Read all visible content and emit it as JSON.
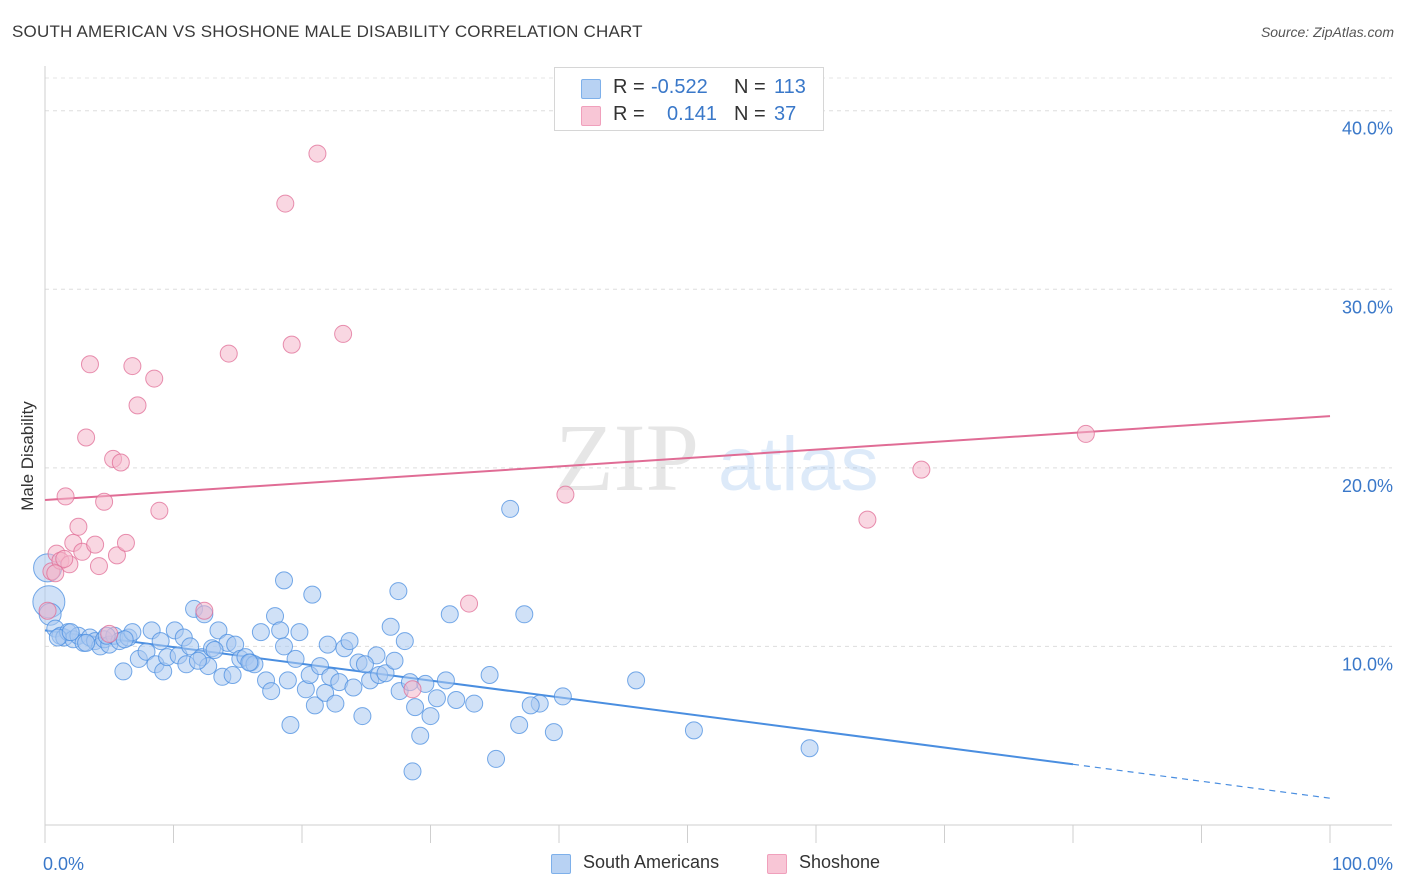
{
  "title": "SOUTH AMERICAN VS SHOSHONE MALE DISABILITY CORRELATION CHART",
  "source": "Source: ZipAtlas.com",
  "watermark": {
    "zip": "ZIP",
    "atlas": "atlas"
  },
  "legend": {
    "rows": [
      {
        "r_label": "R =",
        "r_value": "-0.522",
        "n_label": "N =",
        "n_value": "113",
        "color": "#7eb0ea"
      },
      {
        "r_label": "R =",
        "r_value": "0.141",
        "n_label": "N =",
        "n_value": "37",
        "color": "#f0a0bc"
      }
    ]
  },
  "bottom_legend": [
    {
      "label": "South Americans",
      "color": "#7eb0ea"
    },
    {
      "label": "Shoshone",
      "color": "#f0a0bc"
    }
  ],
  "chart_data": {
    "type": "scatter",
    "xlabel": "",
    "ylabel": "Male Disability",
    "xlim": [
      0,
      100
    ],
    "ylim": [
      0,
      42
    ],
    "x_tick_labels": [
      "0.0%",
      "100.0%"
    ],
    "y_ticks": [
      10,
      20,
      30,
      40
    ],
    "y_tick_labels": [
      "10.0%",
      "20.0%",
      "30.0%",
      "40.0%"
    ],
    "grid": true,
    "series": [
      {
        "name": "South Americans",
        "color": "#4a8ee0",
        "fill": "#a9c8f0",
        "trend": {
          "x0": 0,
          "y0": 10.9,
          "x1": 80,
          "y1": 3.4,
          "dash_to": 100,
          "dash_y": 1.5
        },
        "points": [
          [
            0.2,
            14.4
          ],
          [
            0.3,
            12.5
          ],
          [
            0.4,
            11.8
          ],
          [
            0.8,
            11.0
          ],
          [
            1.2,
            10.6
          ],
          [
            1.5,
            10.5
          ],
          [
            1.8,
            10.8
          ],
          [
            2.2,
            10.4
          ],
          [
            2.6,
            10.6
          ],
          [
            3.0,
            10.2
          ],
          [
            3.5,
            10.5
          ],
          [
            3.9,
            10.3
          ],
          [
            4.3,
            10.0
          ],
          [
            4.6,
            10.4
          ],
          [
            5.0,
            10.1
          ],
          [
            5.4,
            10.6
          ],
          [
            5.8,
            10.3
          ],
          [
            6.1,
            8.6
          ],
          [
            6.5,
            10.5
          ],
          [
            6.8,
            10.8
          ],
          [
            7.3,
            9.3
          ],
          [
            7.9,
            9.7
          ],
          [
            8.3,
            10.9
          ],
          [
            8.6,
            9.0
          ],
          [
            9.2,
            8.6
          ],
          [
            9.5,
            9.4
          ],
          [
            10.1,
            10.9
          ],
          [
            10.4,
            9.5
          ],
          [
            10.8,
            10.5
          ],
          [
            11.0,
            9.0
          ],
          [
            11.3,
            10.0
          ],
          [
            11.6,
            12.1
          ],
          [
            12.2,
            9.4
          ],
          [
            12.4,
            11.8
          ],
          [
            12.7,
            8.9
          ],
          [
            13.0,
            9.9
          ],
          [
            13.5,
            10.9
          ],
          [
            13.8,
            8.3
          ],
          [
            14.2,
            10.2
          ],
          [
            14.6,
            8.4
          ],
          [
            14.8,
            10.1
          ],
          [
            15.2,
            9.3
          ],
          [
            15.6,
            9.4
          ],
          [
            16.0,
            9.1
          ],
          [
            16.3,
            9.0
          ],
          [
            16.8,
            10.8
          ],
          [
            17.2,
            8.1
          ],
          [
            17.6,
            7.5
          ],
          [
            17.9,
            11.7
          ],
          [
            18.3,
            10.9
          ],
          [
            18.6,
            10.0
          ],
          [
            18.9,
            8.1
          ],
          [
            19.1,
            5.6
          ],
          [
            19.5,
            9.3
          ],
          [
            19.8,
            10.8
          ],
          [
            20.3,
            7.6
          ],
          [
            20.6,
            8.4
          ],
          [
            21.0,
            6.7
          ],
          [
            21.4,
            8.9
          ],
          [
            21.8,
            7.4
          ],
          [
            22.2,
            8.3
          ],
          [
            22.6,
            6.8
          ],
          [
            22.9,
            8.0
          ],
          [
            23.3,
            9.9
          ],
          [
            23.7,
            10.3
          ],
          [
            24.0,
            7.7
          ],
          [
            24.4,
            9.1
          ],
          [
            24.7,
            6.1
          ],
          [
            25.3,
            8.1
          ],
          [
            25.8,
            9.5
          ],
          [
            26.0,
            8.4
          ],
          [
            26.5,
            8.5
          ],
          [
            26.9,
            11.1
          ],
          [
            27.2,
            9.2
          ],
          [
            27.6,
            7.5
          ],
          [
            28.0,
            10.3
          ],
          [
            28.4,
            8.0
          ],
          [
            28.8,
            6.6
          ],
          [
            29.2,
            5.0
          ],
          [
            29.6,
            7.9
          ],
          [
            30.0,
            6.1
          ],
          [
            30.5,
            7.1
          ],
          [
            31.2,
            8.1
          ],
          [
            32.0,
            7.0
          ],
          [
            33.4,
            6.8
          ],
          [
            34.6,
            8.4
          ],
          [
            35.1,
            3.7
          ],
          [
            36.2,
            17.7
          ],
          [
            36.9,
            5.6
          ],
          [
            37.3,
            11.8
          ],
          [
            38.5,
            6.8
          ],
          [
            39.6,
            5.2
          ],
          [
            40.3,
            7.2
          ],
          [
            18.6,
            13.7
          ],
          [
            20.8,
            12.9
          ],
          [
            27.5,
            13.1
          ],
          [
            31.5,
            11.8
          ],
          [
            37.8,
            6.7
          ],
          [
            46.0,
            8.1
          ],
          [
            50.5,
            5.3
          ],
          [
            59.5,
            4.3
          ],
          [
            28.6,
            3.0
          ],
          [
            1.0,
            10.5
          ],
          [
            2.0,
            10.8
          ],
          [
            3.2,
            10.2
          ],
          [
            4.8,
            10.6
          ],
          [
            6.2,
            10.4
          ],
          [
            9.0,
            10.3
          ],
          [
            11.9,
            9.2
          ],
          [
            13.2,
            9.8
          ],
          [
            15.9,
            9.1
          ],
          [
            22.0,
            10.1
          ],
          [
            24.9,
            9.0
          ]
        ]
      },
      {
        "name": "Shoshone",
        "color": "#e06c95",
        "fill": "#f4b6cb",
        "trend": {
          "x0": 0,
          "y0": 18.2,
          "x1": 100,
          "y1": 22.9
        },
        "points": [
          [
            0.2,
            12.0
          ],
          [
            0.5,
            14.2
          ],
          [
            0.9,
            15.2
          ],
          [
            1.2,
            14.8
          ],
          [
            1.6,
            18.4
          ],
          [
            1.9,
            14.6
          ],
          [
            2.2,
            15.8
          ],
          [
            2.6,
            16.7
          ],
          [
            2.9,
            15.3
          ],
          [
            3.2,
            21.7
          ],
          [
            3.5,
            25.8
          ],
          [
            3.9,
            15.7
          ],
          [
            4.2,
            14.5
          ],
          [
            4.6,
            18.1
          ],
          [
            5.3,
            20.5
          ],
          [
            5.6,
            15.1
          ],
          [
            5.9,
            20.3
          ],
          [
            6.3,
            15.8
          ],
          [
            6.8,
            25.7
          ],
          [
            7.2,
            23.5
          ],
          [
            8.5,
            25.0
          ],
          [
            8.9,
            17.6
          ],
          [
            12.4,
            12.0
          ],
          [
            14.3,
            26.4
          ],
          [
            18.7,
            34.8
          ],
          [
            19.2,
            26.9
          ],
          [
            21.2,
            37.6
          ],
          [
            23.2,
            27.5
          ],
          [
            5.0,
            10.7
          ],
          [
            28.6,
            7.6
          ],
          [
            33.0,
            12.4
          ],
          [
            40.5,
            18.5
          ],
          [
            64.0,
            17.1
          ],
          [
            68.2,
            19.9
          ],
          [
            81.0,
            21.9
          ],
          [
            0.8,
            14.1
          ],
          [
            1.5,
            14.9
          ]
        ]
      }
    ]
  }
}
